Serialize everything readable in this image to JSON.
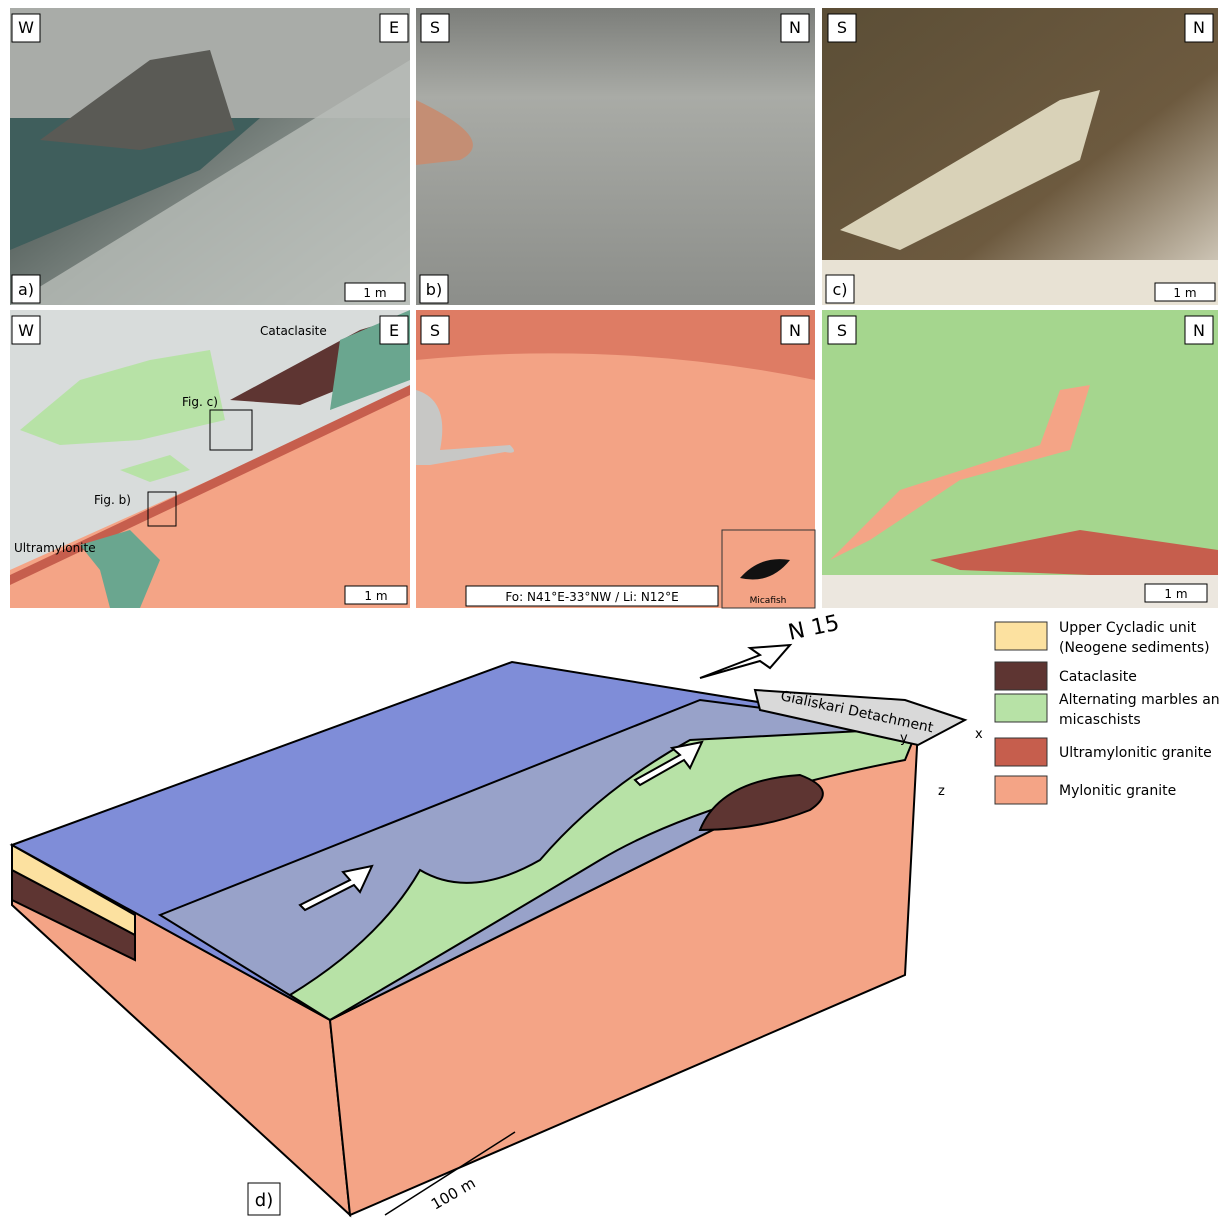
{
  "photos": [
    {
      "left": "W",
      "right": "E",
      "letter": "a)",
      "scale": "1 m"
    },
    {
      "left": "S",
      "right": "N",
      "letter": "b)"
    },
    {
      "left": "S",
      "right": "N",
      "letter": "c)",
      "scale": "1 m"
    }
  ],
  "sketches": [
    {
      "left": "W",
      "right": "E",
      "cataclasite": "Cataclasite",
      "fig_c": "Fig. c)",
      "fig_b": "Fig. b)",
      "ultramylonite": "Ultramylonite",
      "scale": "1 m"
    },
    {
      "left": "S",
      "right": "N",
      "caption": "Fo: N41°E-33°NW / Li: N12°E",
      "inset": "Micafish"
    },
    {
      "left": "S",
      "right": "N",
      "scale": "1 m"
    }
  ],
  "block": {
    "letter": "d)",
    "north": "N 15",
    "detachment": "Gialiskari Detachment",
    "x": "x",
    "y": "y",
    "z": "z",
    "scale": "100 m"
  },
  "legend": [
    {
      "label": "Upper Cycladic unit (Neogene sediments)",
      "color": "#fce1a0"
    },
    {
      "label": "Cataclasite",
      "color": "#5e3532"
    },
    {
      "label": "Alternating marbles and micaschists",
      "color": "#b7e2a6"
    },
    {
      "label": "Ultramylonitic granite",
      "color": "#c65e4d"
    },
    {
      "label": "Mylonitic granite",
      "color": "#f4a486"
    }
  ]
}
